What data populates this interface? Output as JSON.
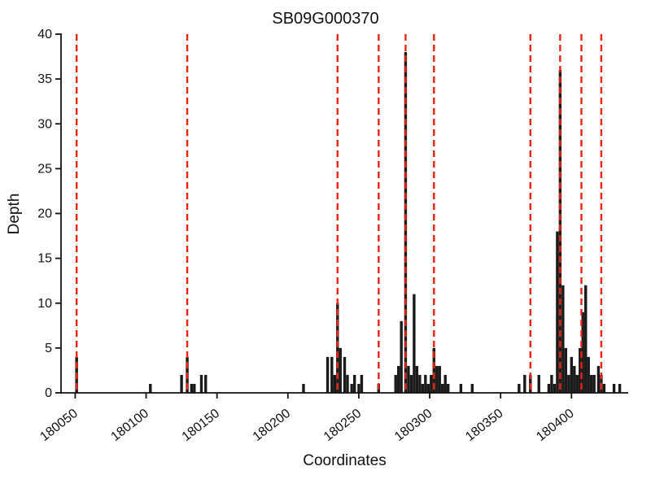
{
  "chart_data": {
    "type": "bar",
    "title": "SB09G000370",
    "xlabel": "Coordinates",
    "ylabel": "Depth",
    "xlim": [
      180040,
      180440
    ],
    "ylim": [
      0,
      40
    ],
    "x_ticks": [
      180050,
      180100,
      180150,
      180200,
      180250,
      180300,
      180350,
      180400
    ],
    "y_ticks": [
      0,
      5,
      10,
      15,
      20,
      25,
      30,
      35,
      40
    ],
    "grid": false,
    "legend": "none",
    "bar_color": "#1a1a1a",
    "dashed_line_color": "#ee2211",
    "dashed_lines_x": [
      180051,
      180129,
      180235,
      180264,
      180283,
      180303,
      180371,
      180392,
      180407,
      180421
    ],
    "bars": [
      [
        180051,
        4
      ],
      [
        180103,
        1
      ],
      [
        180125,
        2
      ],
      [
        180129,
        4
      ],
      [
        180132,
        1
      ],
      [
        180134,
        1
      ],
      [
        180139,
        2
      ],
      [
        180142,
        2
      ],
      [
        180211,
        1
      ],
      [
        180228,
        4
      ],
      [
        180231,
        4
      ],
      [
        180233,
        2
      ],
      [
        180235,
        10
      ],
      [
        180237,
        5
      ],
      [
        180240,
        4
      ],
      [
        180242,
        2
      ],
      [
        180245,
        1
      ],
      [
        180247,
        2
      ],
      [
        180250,
        1
      ],
      [
        180252,
        2
      ],
      [
        180264,
        1
      ],
      [
        180276,
        2
      ],
      [
        180278,
        3
      ],
      [
        180280,
        8
      ],
      [
        180283,
        38
      ],
      [
        180285,
        3
      ],
      [
        180287,
        2
      ],
      [
        180289,
        11
      ],
      [
        180291,
        3
      ],
      [
        180293,
        2
      ],
      [
        180295,
        1
      ],
      [
        180297,
        2
      ],
      [
        180299,
        1
      ],
      [
        180301,
        2
      ],
      [
        180303,
        5
      ],
      [
        180305,
        3
      ],
      [
        180307,
        3
      ],
      [
        180309,
        1
      ],
      [
        180311,
        2
      ],
      [
        180313,
        1
      ],
      [
        180322,
        1
      ],
      [
        180330,
        1
      ],
      [
        180363,
        1
      ],
      [
        180367,
        2
      ],
      [
        180371,
        2
      ],
      [
        180377,
        2
      ],
      [
        180384,
        1
      ],
      [
        180386,
        2
      ],
      [
        180388,
        1
      ],
      [
        180390,
        18
      ],
      [
        180392,
        36
      ],
      [
        180394,
        12
      ],
      [
        180396,
        5
      ],
      [
        180398,
        2
      ],
      [
        180400,
        4
      ],
      [
        180402,
        3
      ],
      [
        180404,
        2
      ],
      [
        180406,
        5
      ],
      [
        180408,
        9
      ],
      [
        180410,
        12
      ],
      [
        180412,
        4
      ],
      [
        180414,
        2
      ],
      [
        180416,
        2
      ],
      [
        180419,
        3
      ],
      [
        180421,
        2
      ],
      [
        180423,
        1
      ],
      [
        180430,
        1
      ],
      [
        180434,
        1
      ]
    ]
  }
}
